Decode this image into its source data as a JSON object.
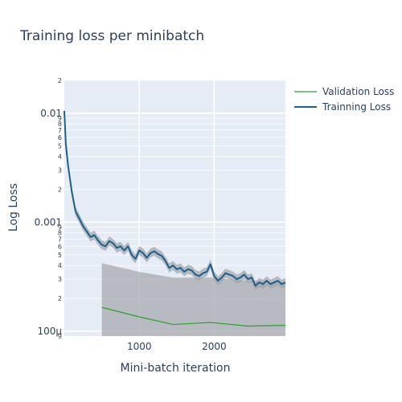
{
  "chart_data": {
    "type": "line",
    "title": "Training loss per minibatch",
    "xlabel": "Mini-batch iteration",
    "ylabel": "Log Loss",
    "y_scale": "log",
    "ylim": [
      9e-05,
      0.02
    ],
    "xlim": [
      0,
      2950
    ],
    "grid": true,
    "legend_position": "top-right",
    "x_tick_labels": [
      "1000",
      "2000"
    ],
    "y_major_tick_labels": [
      "100μ",
      "0.001",
      "0.01"
    ],
    "y_minor_tick_labels": [
      "2",
      "3",
      "4",
      "5",
      "6",
      "7",
      "8",
      "9"
    ],
    "colors": {
      "validation": "#2ca02c",
      "training": "#1f5f8b",
      "validation_band": "#a8aaaf",
      "training_band": "#a0a4aa",
      "plot_bg": "#e5ecf6"
    },
    "series": [
      {
        "name": "Validation Loss",
        "x": [
          500,
          1000,
          1450,
          1950,
          2450,
          2950
        ],
        "y": [
          0.000165,
          0.000135,
          0.000115,
          0.00012,
          0.000111,
          0.000113
        ],
        "band_upper": [
          0.00042,
          0.00035,
          0.00031,
          0.00031,
          0.00029,
          0.00028
        ]
      },
      {
        "name": "Trainning Loss",
        "x": [
          0,
          20,
          50,
          100,
          150,
          200,
          250,
          300,
          350,
          400,
          450,
          500,
          550,
          600,
          650,
          700,
          750,
          800,
          850,
          900,
          950,
          1000,
          1050,
          1100,
          1150,
          1200,
          1250,
          1300,
          1350,
          1400,
          1450,
          1500,
          1550,
          1600,
          1650,
          1700,
          1750,
          1800,
          1850,
          1900,
          1950,
          2000,
          2050,
          2100,
          2150,
          2200,
          2250,
          2300,
          2350,
          2400,
          2450,
          2500,
          2550,
          2600,
          2650,
          2700,
          2750,
          2800,
          2850,
          2900,
          2950
        ],
        "y": [
          0.0105,
          0.0052,
          0.0033,
          0.0019,
          0.00125,
          0.00108,
          0.00092,
          0.00082,
          0.00073,
          0.00076,
          0.00068,
          0.00062,
          0.0006,
          0.00067,
          0.00064,
          0.00058,
          0.0006,
          0.00055,
          0.0006,
          0.0005,
          0.00046,
          0.00055,
          0.00052,
          0.00047,
          0.00052,
          0.00054,
          0.00051,
          0.00049,
          0.00044,
          0.00038,
          0.0004,
          0.00037,
          0.00038,
          0.00035,
          0.00037,
          0.00036,
          0.00033,
          0.00032,
          0.00034,
          0.00035,
          0.00041,
          0.00032,
          0.00029,
          0.00031,
          0.00034,
          0.00033,
          0.00032,
          0.0003,
          0.00031,
          0.00033,
          0.0003,
          0.00031,
          0.00026,
          0.00028,
          0.00027,
          0.00029,
          0.00027,
          0.00028,
          0.00029,
          0.00027,
          0.00028
        ],
        "band_ratio": 1.1
      }
    ]
  }
}
